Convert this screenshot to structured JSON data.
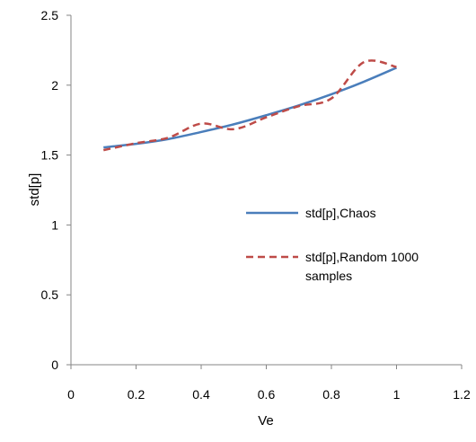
{
  "chart_data": {
    "type": "line",
    "title": "",
    "xlabel": "Ve",
    "ylabel": "std[p]",
    "xlim": [
      0,
      1.2
    ],
    "ylim": [
      0,
      2.5
    ],
    "xticks": [
      "0",
      "0.2",
      "0.4",
      "0.6",
      "0.8",
      "1",
      "1.2"
    ],
    "yticks": [
      "0",
      "0.5",
      "1",
      "1.5",
      "2",
      "2.5"
    ],
    "xtick_values": [
      0,
      0.2,
      0.4,
      0.6,
      0.8,
      1.0,
      1.2
    ],
    "ytick_values": [
      0,
      0.5,
      1.0,
      1.5,
      2.0,
      2.5
    ],
    "grid": false,
    "legend_position": "center-right",
    "series": [
      {
        "name": "std[p],Chaos",
        "legend_lines": [
          "std[p],Chaos"
        ],
        "color": "#4a7ebb",
        "style": "solid",
        "x": [
          0.1,
          0.2,
          0.3,
          0.4,
          0.5,
          0.6,
          0.7,
          0.8,
          0.9,
          1.0
        ],
        "y": [
          1.555,
          1.58,
          1.615,
          1.665,
          1.72,
          1.785,
          1.855,
          1.935,
          2.025,
          2.125
        ]
      },
      {
        "name": "std[p],Random 1000 samples",
        "legend_lines": [
          "std[p],Random 1000",
          "samples"
        ],
        "color": "#be4b48",
        "style": "dashed",
        "x": [
          0.1,
          0.2,
          0.3,
          0.4,
          0.5,
          0.6,
          0.7,
          0.8,
          0.9,
          1.0
        ],
        "y": [
          1.535,
          1.585,
          1.625,
          1.725,
          1.685,
          1.77,
          1.85,
          1.905,
          2.165,
          2.13
        ]
      }
    ]
  }
}
